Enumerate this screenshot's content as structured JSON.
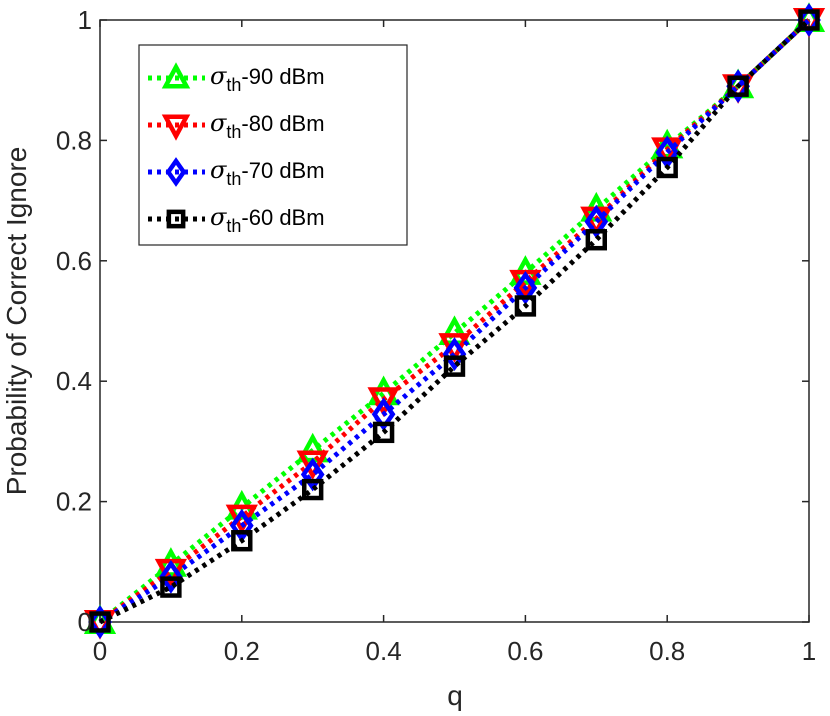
{
  "chart_data": {
    "type": "line",
    "xlabel": "q",
    "ylabel": "Probability of Correct Ignore",
    "xlim": [
      0,
      1
    ],
    "ylim": [
      0,
      1
    ],
    "x_ticks": [
      "0",
      "0.2",
      "0.4",
      "0.6",
      "0.8",
      "1"
    ],
    "y_ticks": [
      "0",
      "0.2",
      "0.4",
      "0.6",
      "0.8",
      "1"
    ],
    "x": [
      0,
      0.1,
      0.2,
      0.3,
      0.4,
      0.5,
      0.6,
      0.7,
      0.8,
      0.9,
      1.0
    ],
    "grid": false,
    "legend_position": "top-left",
    "series": [
      {
        "name": "-90 dBm",
        "legend_symbol": "σ",
        "legend_subscript": "th",
        "color": "#00ff00",
        "marker": "triangle-up",
        "values": [
          0.0,
          0.095,
          0.19,
          0.285,
          0.38,
          0.48,
          0.58,
          0.685,
          0.79,
          0.89,
          1.0
        ]
      },
      {
        "name": "-80 dBm",
        "legend_symbol": "σ",
        "legend_subscript": "th",
        "color": "#ff0000",
        "marker": "triangle-down",
        "values": [
          0.0,
          0.085,
          0.175,
          0.265,
          0.37,
          0.46,
          0.565,
          0.67,
          0.785,
          0.89,
          1.0
        ]
      },
      {
        "name": "-70 dBm",
        "legend_symbol": "σ",
        "legend_subscript": "th",
        "color": "#0000ff",
        "marker": "diamond",
        "values": [
          0.0,
          0.075,
          0.16,
          0.245,
          0.345,
          0.445,
          0.555,
          0.665,
          0.78,
          0.89,
          1.0
        ]
      },
      {
        "name": "-60 dBm",
        "legend_symbol": "σ",
        "legend_subscript": "th",
        "color": "#000000",
        "marker": "square",
        "values": [
          0.0,
          0.058,
          0.135,
          0.22,
          0.315,
          0.425,
          0.525,
          0.635,
          0.755,
          0.89,
          1.0
        ]
      }
    ]
  }
}
